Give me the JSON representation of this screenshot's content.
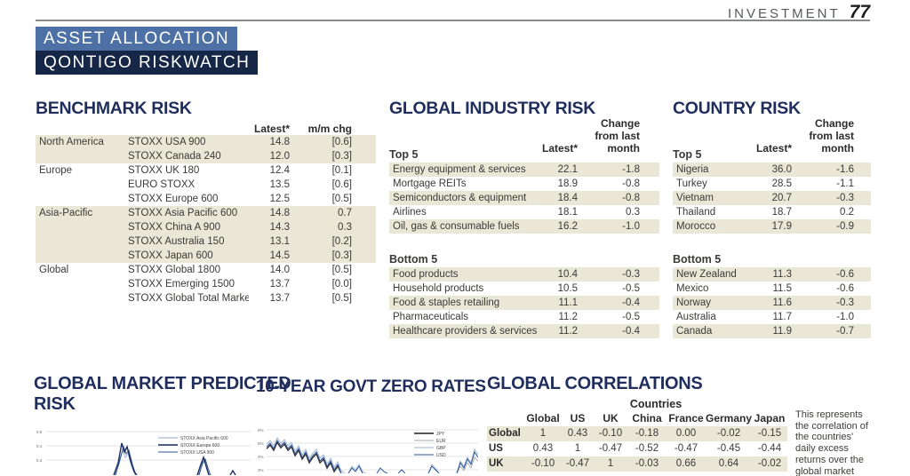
{
  "page": {
    "section_label": "INVESTMENT",
    "page_number": "77",
    "banner_line1": "ASSET ALLOCATION",
    "banner_line2": "QONTIGO RISKWATCH"
  },
  "colors": {
    "banner1_bg": "#4e71a5",
    "banner2_bg": "#152647",
    "heading_navy": "#1f2e5c",
    "row_shade": "#eae7d6"
  },
  "benchmark_risk": {
    "title": "BENCHMARK RISK",
    "col_latest": "Latest*",
    "col_chg": "m/m chg",
    "rows": [
      {
        "region": "North America",
        "index": "STOXX USA 900",
        "latest": "14.8",
        "chg": "[0.6]"
      },
      {
        "region": "",
        "index": "STOXX Canada 240",
        "latest": "12.0",
        "chg": "[0.3]"
      },
      {
        "region": "Europe",
        "index": "STOXX UK 180",
        "latest": "12.4",
        "chg": "[0.1]"
      },
      {
        "region": "",
        "index": "EURO STOXX",
        "latest": "13.5",
        "chg": "[0.6]"
      },
      {
        "region": "",
        "index": "STOXX Europe 600",
        "latest": "12.5",
        "chg": "[0.5]"
      },
      {
        "region": "Asia-Pacific",
        "index": "STOXX Asia Pacific 600",
        "latest": "14.8",
        "chg": "0.7"
      },
      {
        "region": "",
        "index": "STOXX China A 900",
        "latest": "14.3",
        "chg": "0.3"
      },
      {
        "region": "",
        "index": "STOXX Australia 150",
        "latest": "13.1",
        "chg": "[0.2]"
      },
      {
        "region": "",
        "index": "STOXX Japan 600",
        "latest": "14.5",
        "chg": "[0.3]"
      },
      {
        "region": "Global",
        "index": "STOXX Global 1800",
        "latest": "14.0",
        "chg": "[0.5]"
      },
      {
        "region": "",
        "index": "STOXX Emerging 1500",
        "latest": "13.7",
        "chg": "[0.0]"
      },
      {
        "region": "",
        "index": "STOXX Global Total Market",
        "latest": "13.7",
        "chg": "[0.5]"
      }
    ]
  },
  "industry_risk": {
    "title": "GLOBAL INDUSTRY RISK",
    "col_latest": "Latest*",
    "col_chg": "Change from last month",
    "top_label": "Top 5",
    "bottom_label": "Bottom 5",
    "top": [
      {
        "name": "Energy equipment & services",
        "latest": "22.1",
        "chg": "-1.8"
      },
      {
        "name": "Mortgage REITs",
        "latest": "18.9",
        "chg": "-0.8"
      },
      {
        "name": "Semiconductors & equipment",
        "latest": "18.4",
        "chg": "-0.8"
      },
      {
        "name": "Airlines",
        "latest": "18.1",
        "chg": "0.3"
      },
      {
        "name": "Oil, gas & consumable fuels",
        "latest": "16.2",
        "chg": "-1.0"
      }
    ],
    "bottom": [
      {
        "name": "Food products",
        "latest": "10.4",
        "chg": "-0.3"
      },
      {
        "name": "Household products",
        "latest": "10.5",
        "chg": "-0.5"
      },
      {
        "name": "Food & staples retailing",
        "latest": "11.1",
        "chg": "-0.4"
      },
      {
        "name": "Pharmaceuticals",
        "latest": "11.2",
        "chg": "-0.5"
      },
      {
        "name": "Healthcare providers & services",
        "latest": "11.2",
        "chg": "-0.4"
      }
    ]
  },
  "country_risk": {
    "title": "COUNTRY RISK",
    "col_latest": "Latest*",
    "col_chg": "Change from last month",
    "top_label": "Top 5",
    "bottom_label": "Bottom 5",
    "top": [
      {
        "name": "Nigeria",
        "latest": "36.0",
        "chg": "-1.6"
      },
      {
        "name": "Turkey",
        "latest": "28.5",
        "chg": "-1.1"
      },
      {
        "name": "Vietnam",
        "latest": "20.7",
        "chg": "-0.3"
      },
      {
        "name": "Thailand",
        "latest": "18.7",
        "chg": "0.2"
      },
      {
        "name": "Morocco",
        "latest": "17.9",
        "chg": "-0.9"
      }
    ],
    "bottom": [
      {
        "name": "New Zealand",
        "latest": "11.3",
        "chg": "-0.6"
      },
      {
        "name": "Mexico",
        "latest": "11.5",
        "chg": "-0.6"
      },
      {
        "name": "Norway",
        "latest": "11.6",
        "chg": "-0.3"
      },
      {
        "name": "Australia",
        "latest": "11.7",
        "chg": "-1.0"
      },
      {
        "name": "Canada",
        "latest": "11.9",
        "chg": "-0.7"
      }
    ]
  },
  "charts": {
    "predicted_risk": {
      "title_line1": "GLOBAL MARKET PREDICTED",
      "title_line2": "RISK",
      "y_ticks": [
        "0.5",
        "0.4",
        "0.3"
      ],
      "legend": [
        "STOXX Asia Pacific 600",
        "STOXX Europe 600",
        "STOXX USA 900"
      ]
    },
    "zero_rates": {
      "title": "10-YEAR GOVT ZERO RATES",
      "y_ticks": [
        "6%",
        "5%",
        "4%",
        "3%"
      ],
      "legend": [
        "JPY",
        "EUR",
        "GBP",
        "USD"
      ]
    }
  },
  "chart_data": [
    {
      "type": "line",
      "title": "GLOBAL MARKET PREDICTED RISK",
      "series": [
        {
          "name": "STOXX Asia Pacific 600"
        },
        {
          "name": "STOXX Europe 600"
        },
        {
          "name": "STOXX USA 900"
        }
      ],
      "y_ticks_visible": [
        0.5,
        0.4,
        0.3
      ],
      "visible_features": "lines mostly below 0.3 (cut by screenshot edge); sharp spike peaking about 0.42 near left of plot, secondary spike about 0.29 near right"
    },
    {
      "type": "line",
      "title": "10-YEAR GOVT ZERO RATES",
      "series": [
        {
          "name": "JPY"
        },
        {
          "name": "EUR"
        },
        {
          "name": "GBP"
        },
        {
          "name": "USD"
        }
      ],
      "y_ticks_visible": [
        "6%",
        "5%",
        "4%",
        "3%"
      ],
      "visible_features": "noisy overlapping lines starting near 5% at left, declining toward 3% with oscillations, rebounding to about 4.5-5% at right edge; lower portion cut by screenshot edge"
    },
    {
      "type": "table",
      "title": "GLOBAL CORRELATIONS",
      "group_header": "Countries",
      "columns": [
        "Global",
        "US",
        "UK",
        "China",
        "France",
        "Germany",
        "Japan"
      ],
      "rows": [
        {
          "label": "Global",
          "values": [
            "1",
            "0.43",
            "-0.10",
            "-0.18",
            "0.00",
            "-0.02",
            "-0.15"
          ]
        },
        {
          "label": "US",
          "values": [
            "0.43",
            "1",
            "-0.47",
            "-0.52",
            "-0.47",
            "-0.45",
            "-0.44"
          ]
        },
        {
          "label": "UK",
          "values": [
            "-0.10",
            "-0.47",
            "1",
            "-0.03",
            "0.66",
            "0.64",
            "-0.02"
          ]
        }
      ]
    }
  ],
  "correlations": {
    "title": "GLOBAL CORRELATIONS",
    "group_header": "Countries",
    "columns": [
      "Global",
      "US",
      "UK",
      "China",
      "France",
      "Germany",
      "Japan"
    ],
    "rows": [
      {
        "label": "Global",
        "values": [
          "1",
          "0.43",
          "-0.10",
          "-0.18",
          "0.00",
          "-0.02",
          "-0.15"
        ]
      },
      {
        "label": "US",
        "values": [
          "0.43",
          "1",
          "-0.47",
          "-0.52",
          "-0.47",
          "-0.45",
          "-0.44"
        ]
      },
      {
        "label": "UK",
        "values": [
          "-0.10",
          "-0.47",
          "1",
          "-0.03",
          "0.66",
          "0.64",
          "-0.02"
        ]
      }
    ],
    "note": "This represents the correlation of the countries' daily excess returns over the global market"
  }
}
